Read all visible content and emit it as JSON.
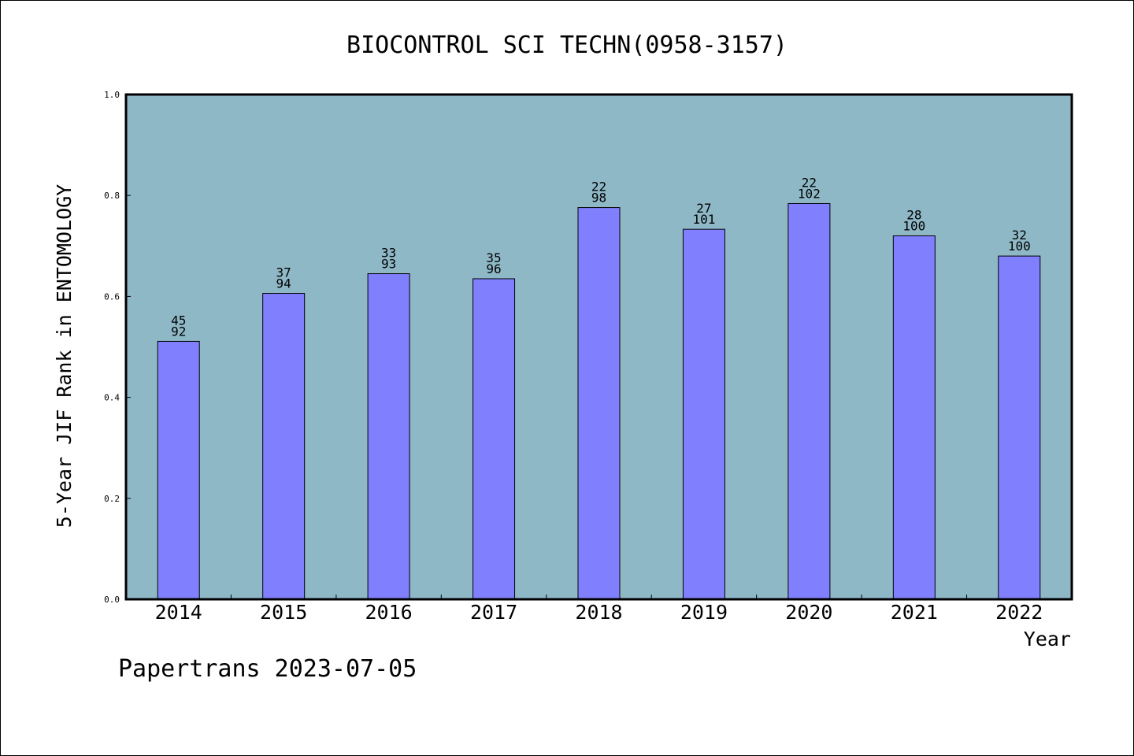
{
  "chart_data": {
    "type": "bar",
    "title": "BIOCONTROL SCI TECHN(0958-3157)",
    "xlabel": "Year",
    "ylabel": "5-Year JIF Rank in ENTOMOLOGY",
    "ylim": [
      0,
      1.0
    ],
    "yticks": [
      "0.0",
      "0.2",
      "0.4",
      "0.6",
      "0.8",
      "1.0"
    ],
    "categories": [
      "2014",
      "2015",
      "2016",
      "2017",
      "2018",
      "2019",
      "2020",
      "2021",
      "2022"
    ],
    "values": [
      0.511,
      0.606,
      0.645,
      0.635,
      0.776,
      0.733,
      0.784,
      0.72,
      0.68
    ],
    "rank_labels": [
      "45",
      "37",
      "33",
      "35",
      "22",
      "27",
      "22",
      "28",
      "32"
    ],
    "total_labels": [
      "92",
      "94",
      "93",
      "96",
      "98",
      "101",
      "102",
      "100",
      "100"
    ],
    "grid": false,
    "colors": {
      "plot_bg": "#8fb8c7",
      "bar": "#8080ff"
    }
  },
  "footer": {
    "text": "Papertrans 2023-07-05"
  }
}
